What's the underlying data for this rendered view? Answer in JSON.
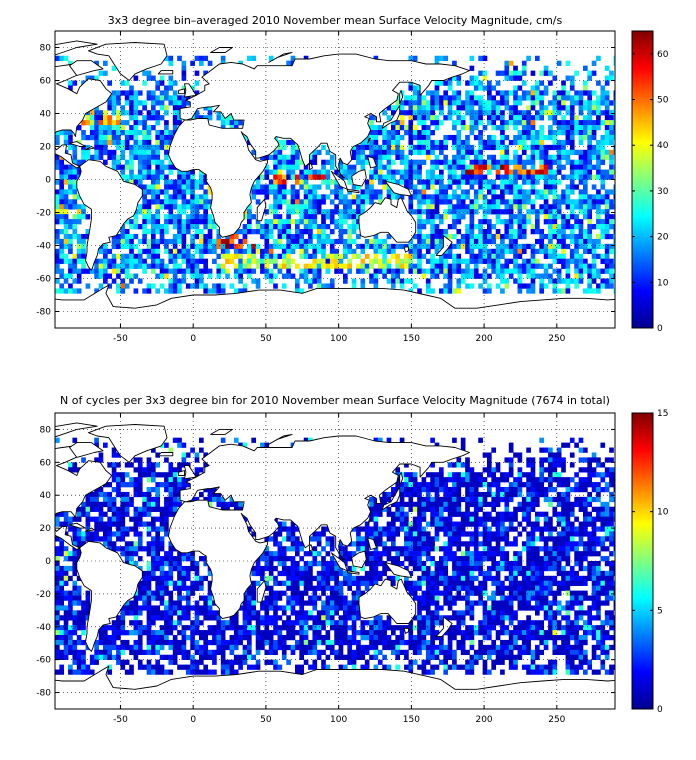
{
  "chart_data": [
    {
      "type": "heatmap",
      "title": "3x3 degree bin–averaged 2010 November mean Surface Velocity Magnitude, cm/s",
      "xlabel": "",
      "ylabel": "",
      "xlim": [
        -95,
        290
      ],
      "ylim": [
        -90,
        90
      ],
      "x_ticks": [
        "-50",
        "0",
        "50",
        "100",
        "150",
        "200",
        "250"
      ],
      "y_ticks": [
        "80",
        "60",
        "40",
        "20",
        "0",
        "-20",
        "-40",
        "-60",
        "-80"
      ],
      "grid": true,
      "colorbar": {
        "min": 0,
        "max": 65,
        "ticks": [
          "0",
          "10",
          "20",
          "30",
          "40",
          "50",
          "60"
        ],
        "colormap": "jet"
      },
      "bin_size_deg": 3,
      "seed": 11,
      "high_value_zones": [
        {
          "name": "agulhas",
          "lon": [
            15,
            45
          ],
          "lat": [
            -42,
            -33
          ],
          "value": 62
        },
        {
          "name": "equatorial-pacific",
          "lon": [
            185,
            245
          ],
          "lat": [
            4,
            9
          ],
          "value": 60
        },
        {
          "name": "equatorial-indian",
          "lon": [
            55,
            90
          ],
          "lat": [
            -3,
            2
          ],
          "value": 58
        },
        {
          "name": "gulf-stream",
          "lon": [
            -78,
            -50
          ],
          "lat": [
            33,
            42
          ],
          "value": 48
        },
        {
          "name": "kuroshio",
          "lon": [
            135,
            155
          ],
          "lat": [
            30,
            38
          ],
          "value": 45
        },
        {
          "name": "southern-ocean",
          "lon": [
            20,
            150
          ],
          "lat": [
            -55,
            -44
          ],
          "value": 42
        }
      ]
    },
    {
      "type": "heatmap",
      "title": "N of cycles per 3x3 degree bin for 2010 November mean Surface Velocity Magnitude (7674 in total)",
      "xlabel": "",
      "ylabel": "",
      "xlim": [
        -95,
        290
      ],
      "ylim": [
        -90,
        90
      ],
      "x_ticks": [
        "-50",
        "0",
        "50",
        "100",
        "150",
        "200",
        "250"
      ],
      "y_ticks": [
        "80",
        "60",
        "40",
        "20",
        "0",
        "-20",
        "-40",
        "-60",
        "-80"
      ],
      "grid": true,
      "colorbar": {
        "min": 0,
        "max": 15,
        "ticks": [
          "0",
          "5",
          "10",
          "15"
        ],
        "colormap": "jet"
      },
      "bin_size_deg": 3,
      "seed": 29,
      "typical_values": [
        1,
        2,
        3,
        4,
        6
      ]
    }
  ]
}
